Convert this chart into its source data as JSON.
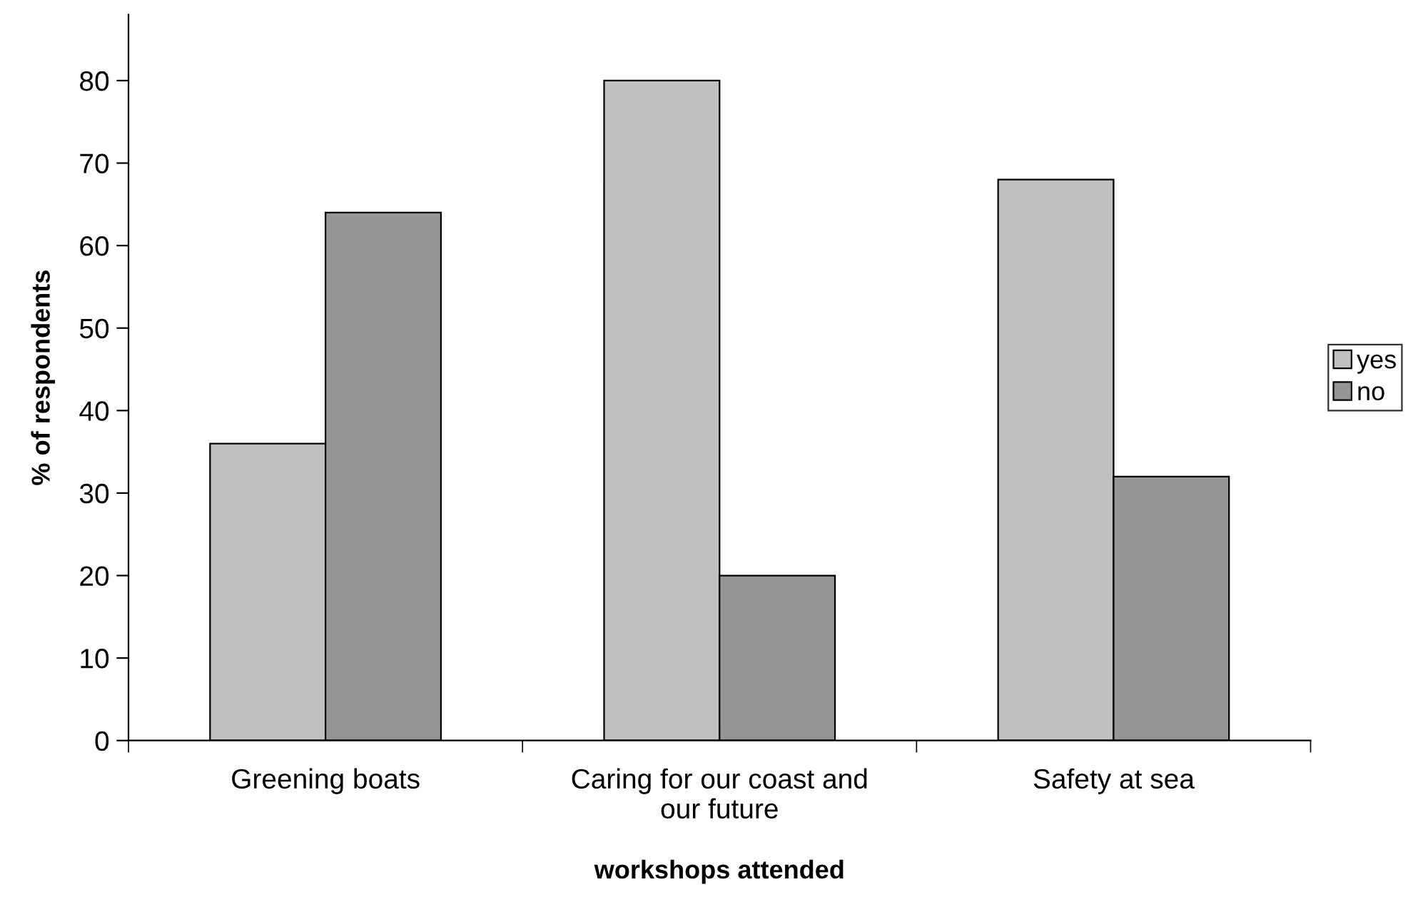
{
  "chart_data": {
    "type": "bar",
    "xlabel": "workshops attended",
    "ylabel": "% of respondents",
    "categories": [
      "Greening boats",
      "Caring for our coast and\nour future",
      "Safety at sea"
    ],
    "series": [
      {
        "name": "yes",
        "color": "#c0c0c0",
        "values": [
          36,
          80,
          68
        ]
      },
      {
        "name": "no",
        "color": "#969696",
        "values": [
          64,
          20,
          32
        ]
      }
    ],
    "ylim": [
      0,
      88
    ],
    "yticks": [
      0,
      10,
      20,
      30,
      40,
      50,
      60,
      70,
      80
    ],
    "grid": false,
    "legend": "right"
  }
}
